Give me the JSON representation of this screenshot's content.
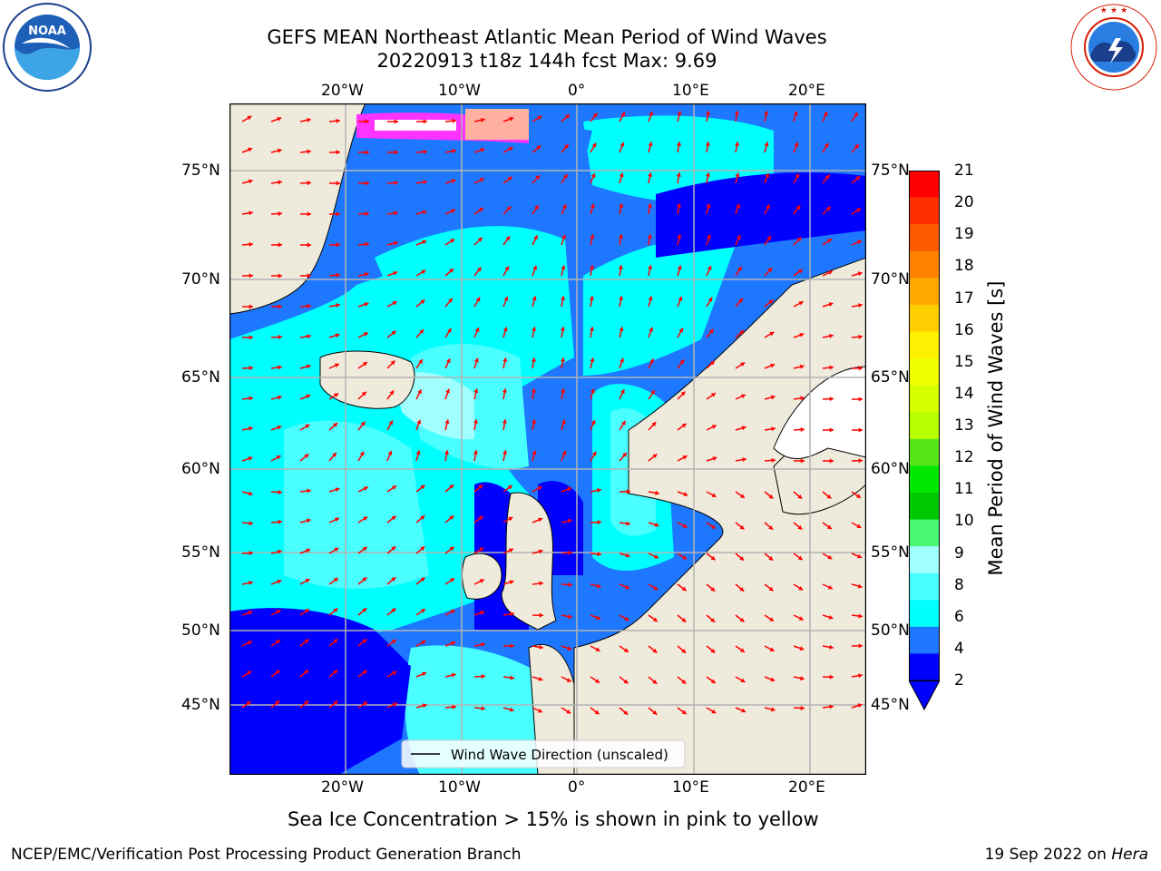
{
  "header": {
    "title_line1": "GEFS MEAN Northeast Atlantic Mean Period of Wind Waves",
    "title_line2": "20220913 t18z 144h fcst   Max: 9.69"
  },
  "logos": {
    "left_name": "NOAA",
    "left_ring_text": "NATIONAL OCEANIC AND ATMOSPHERIC ADMINISTRATION · U.S. DEPARTMENT OF COMMERCE",
    "right_ring_text": "NATIONAL WEATHER SERVICE"
  },
  "map": {
    "lon_labels": [
      "20°W",
      "10°W",
      "0°",
      "10°E",
      "20°E"
    ],
    "lat_labels": [
      "75°N",
      "70°N",
      "65°N",
      "60°N",
      "55°N",
      "50°N",
      "45°N"
    ],
    "legend_label": "Wind Wave Direction (unscaled)",
    "colors": {
      "land": "#efebdc",
      "band_0_2": "#0000ff",
      "band_2_4": "#1e78ff",
      "band_4_6": "#00ffff",
      "band_6_8": "#49ffff",
      "band_8_9": "#a0ffff",
      "ice": "#ff33ff",
      "arrow": "#ff0000",
      "grid": "#b3b3b3"
    }
  },
  "colorbar": {
    "label": "Mean Period of Wind Waves [s]",
    "ticks": [
      "21",
      "20",
      "19",
      "18",
      "17",
      "16",
      "15",
      "14",
      "13",
      "12",
      "11",
      "10",
      "9",
      "8",
      "6",
      "4",
      "2"
    ],
    "colors": [
      "#ff0000",
      "#ff3000",
      "#ff5a00",
      "#ff8200",
      "#ffa800",
      "#ffce00",
      "#ffef00",
      "#f0ff00",
      "#d8ff00",
      "#b8ff00",
      "#58e51a",
      "#00e800",
      "#00c800",
      "#48f870",
      "#a0ffff",
      "#49ffff",
      "#00ffff",
      "#1e78ff",
      "#0000ff"
    ]
  },
  "notes": {
    "ice_note": "Sea Ice Concentration > 15% is shown in pink to yellow",
    "footer_left": "NCEP/EMC/Verification Post Processing Product Generation Branch",
    "footer_right_date": "19 Sep 2022 on ",
    "footer_right_host": "Hera"
  }
}
